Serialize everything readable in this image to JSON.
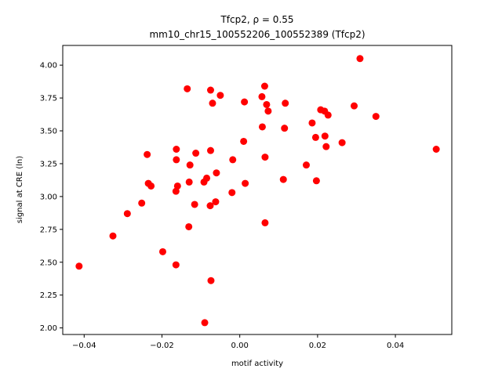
{
  "chart_data": {
    "type": "scatter",
    "title_line1": "Tfcp2, ρ = 0.55",
    "title_line2": "mm10_chr15_100552206_100552389 (Tfcp2)",
    "xlabel": "motif activity",
    "ylabel": "signal at CRE (ln)",
    "xlim": [
      -0.0455,
      0.0545
    ],
    "ylim": [
      1.95,
      4.15
    ],
    "xticks": [
      -0.04,
      -0.02,
      0.0,
      0.02,
      0.04
    ],
    "xtick_labels": [
      "−0.04",
      "−0.02",
      "0.00",
      "0.02",
      "0.04"
    ],
    "yticks": [
      2.0,
      2.25,
      2.5,
      2.75,
      3.0,
      3.25,
      3.5,
      3.75,
      4.0
    ],
    "ytick_labels": [
      "2.00",
      "2.25",
      "2.50",
      "2.75",
      "3.00",
      "3.25",
      "3.50",
      "3.75",
      "4.00"
    ],
    "marker_color": "#ff0000",
    "grid": false,
    "points": [
      [
        -0.0413,
        2.47
      ],
      [
        -0.0326,
        2.7
      ],
      [
        -0.0289,
        2.87
      ],
      [
        -0.0252,
        2.95
      ],
      [
        -0.0238,
        3.32
      ],
      [
        -0.0235,
        3.1
      ],
      [
        -0.0228,
        3.08
      ],
      [
        -0.0198,
        2.58
      ],
      [
        -0.0164,
        2.48
      ],
      [
        -0.0164,
        3.04
      ],
      [
        -0.0163,
        3.36
      ],
      [
        -0.0163,
        3.28
      ],
      [
        -0.016,
        3.08
      ],
      [
        -0.0135,
        3.82
      ],
      [
        -0.0131,
        2.77
      ],
      [
        -0.013,
        3.11
      ],
      [
        -0.0128,
        3.24
      ],
      [
        -0.0116,
        2.94
      ],
      [
        -0.0113,
        3.33
      ],
      [
        -0.0092,
        3.11
      ],
      [
        -0.009,
        2.04
      ],
      [
        -0.0085,
        3.14
      ],
      [
        -0.0076,
        2.93
      ],
      [
        -0.0075,
        3.81
      ],
      [
        -0.0075,
        3.35
      ],
      [
        -0.0074,
        2.36
      ],
      [
        -0.007,
        3.71
      ],
      [
        -0.0062,
        2.96
      ],
      [
        -0.006,
        3.18
      ],
      [
        -0.005,
        3.77
      ],
      [
        -0.002,
        3.03
      ],
      [
        -0.0018,
        3.28
      ],
      [
        0.001,
        3.42
      ],
      [
        0.0012,
        3.72
      ],
      [
        0.0014,
        3.1
      ],
      [
        0.0057,
        3.76
      ],
      [
        0.0058,
        3.53
      ],
      [
        0.0064,
        3.84
      ],
      [
        0.0065,
        2.8
      ],
      [
        0.0065,
        3.3
      ],
      [
        0.0069,
        3.7
      ],
      [
        0.0073,
        3.65
      ],
      [
        0.0112,
        3.13
      ],
      [
        0.0115,
        3.52
      ],
      [
        0.0117,
        3.71
      ],
      [
        0.0171,
        3.24
      ],
      [
        0.0186,
        3.56
      ],
      [
        0.0195,
        3.45
      ],
      [
        0.0197,
        3.12
      ],
      [
        0.0208,
        3.66
      ],
      [
        0.0218,
        3.65
      ],
      [
        0.0219,
        3.46
      ],
      [
        0.0222,
        3.38
      ],
      [
        0.0227,
        3.62
      ],
      [
        0.0263,
        3.41
      ],
      [
        0.0294,
        3.69
      ],
      [
        0.0309,
        4.05
      ],
      [
        0.035,
        3.61
      ],
      [
        0.0505,
        3.36
      ]
    ]
  }
}
